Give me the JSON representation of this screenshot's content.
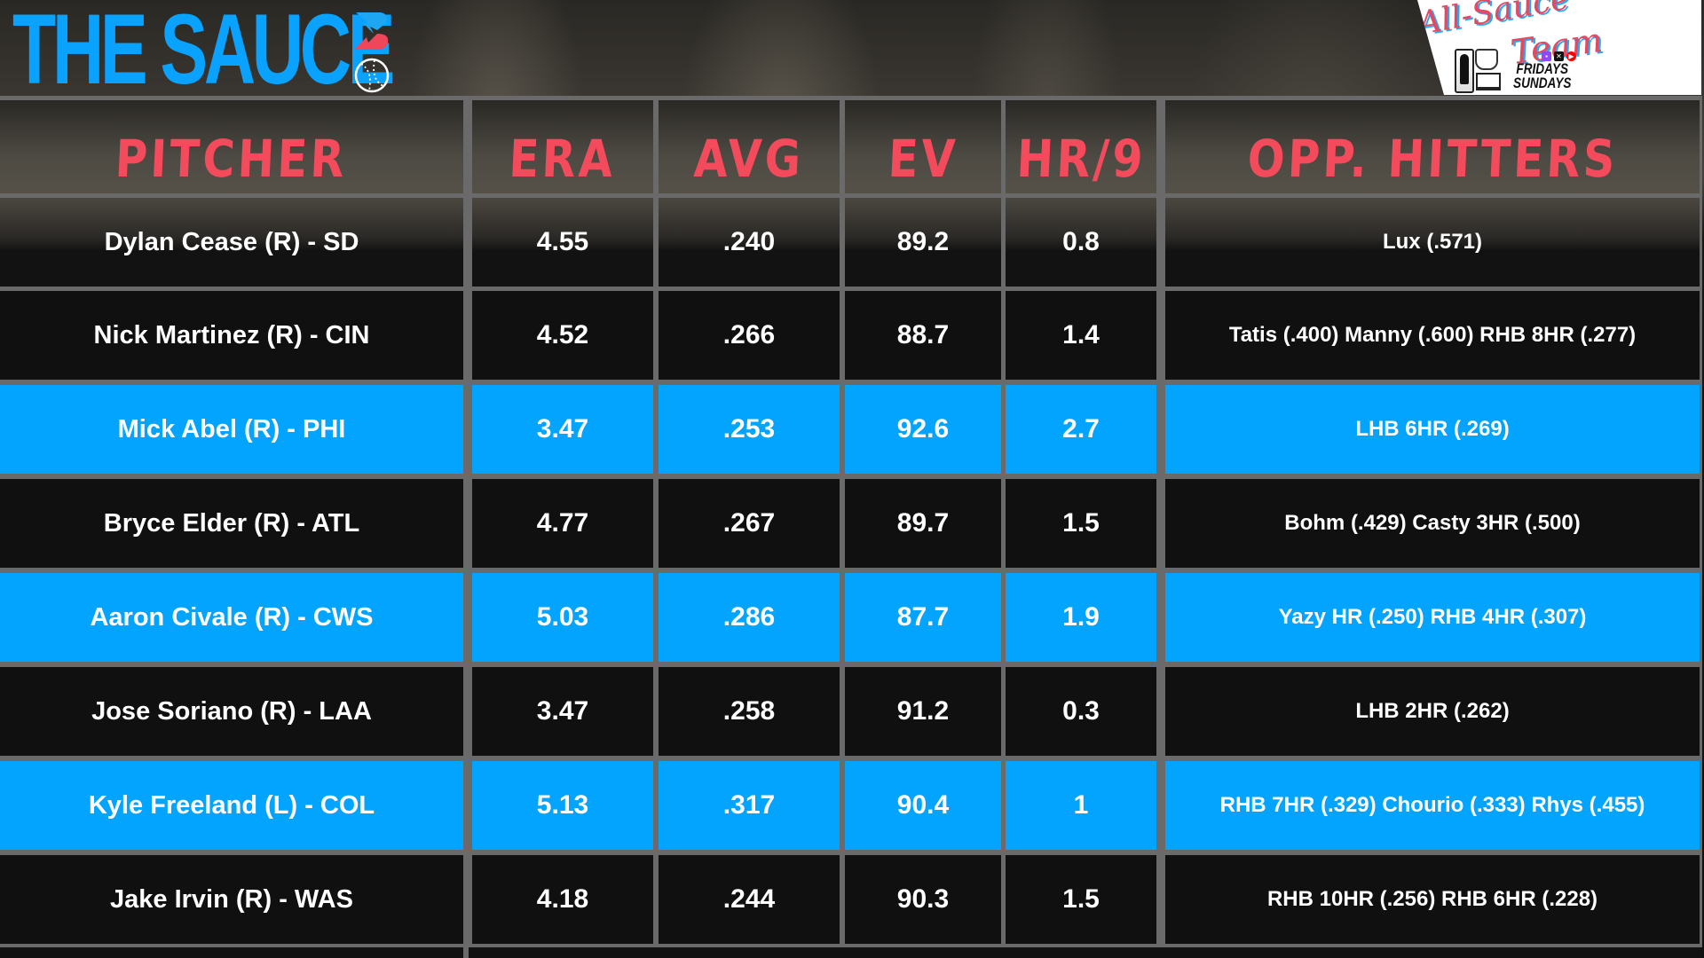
{
  "brand": {
    "title": "THE SAUCE",
    "logo_icon": "bolt-b-logo-icon",
    "ball_icon": "baseball-icon",
    "accent_blue": "#0aa2ff",
    "accent_red": "#f44b5c"
  },
  "promo": {
    "script_line1": "All-Sauce",
    "script_line2": "Team",
    "days_line1": "FRIDAYS",
    "days_line2": "SUNDAYS",
    "icons": [
      "nba-logo-icon",
      "lab-microscope-icon",
      "laptop-icon",
      "twitch-icon",
      "x-icon",
      "youtube-icon"
    ]
  },
  "table": {
    "headers": [
      "PITCHER",
      "ERA",
      "AVG",
      "EV",
      "HR/9",
      "OPP. HITTERS"
    ],
    "row_colors": {
      "dark": "#101010",
      "highlight": "#02a4fe"
    },
    "rows": [
      {
        "pitcher": "Dylan Cease (R) - SD",
        "era": "4.55",
        "avg": ".240",
        "ev": "89.2",
        "hr9": "0.8",
        "opp": "Lux (.571)",
        "style": "dark"
      },
      {
        "pitcher": "Nick Martinez (R) - CIN",
        "era": "4.52",
        "avg": ".266",
        "ev": "88.7",
        "hr9": "1.4",
        "opp": "Tatis (.400) Manny (.600) RHB 8HR (.277)",
        "style": "dark"
      },
      {
        "pitcher": "Mick Abel (R) - PHI",
        "era": "3.47",
        "avg": ".253",
        "ev": "92.6",
        "hr9": "2.7",
        "opp": "LHB 6HR (.269)",
        "style": "blue"
      },
      {
        "pitcher": "Bryce Elder (R) - ATL",
        "era": "4.77",
        "avg": ".267",
        "ev": "89.7",
        "hr9": "1.5",
        "opp": "Bohm (.429) Casty 3HR (.500)",
        "style": "dark"
      },
      {
        "pitcher": "Aaron Civale (R) - CWS",
        "era": "5.03",
        "avg": ".286",
        "ev": "87.7",
        "hr9": "1.9",
        "opp": "Yazy HR (.250) RHB 4HR (.307)",
        "style": "blue"
      },
      {
        "pitcher": "Jose Soriano (R) - LAA",
        "era": "3.47",
        "avg": ".258",
        "ev": "91.2",
        "hr9": "0.3",
        "opp": "LHB 2HR (.262)",
        "style": "dark"
      },
      {
        "pitcher": "Kyle Freeland (L) - COL",
        "era": "5.13",
        "avg": ".317",
        "ev": "90.4",
        "hr9": "1",
        "opp": "RHB 7HR (.329) Chourio (.333) Rhys (.455)",
        "style": "blue"
      },
      {
        "pitcher": "Jake Irvin (R) - WAS",
        "era": "4.18",
        "avg": ".244",
        "ev": "90.3",
        "hr9": "1.5",
        "opp": "RHB 10HR (.256) RHB 6HR (.228)",
        "style": "dark"
      }
    ]
  }
}
